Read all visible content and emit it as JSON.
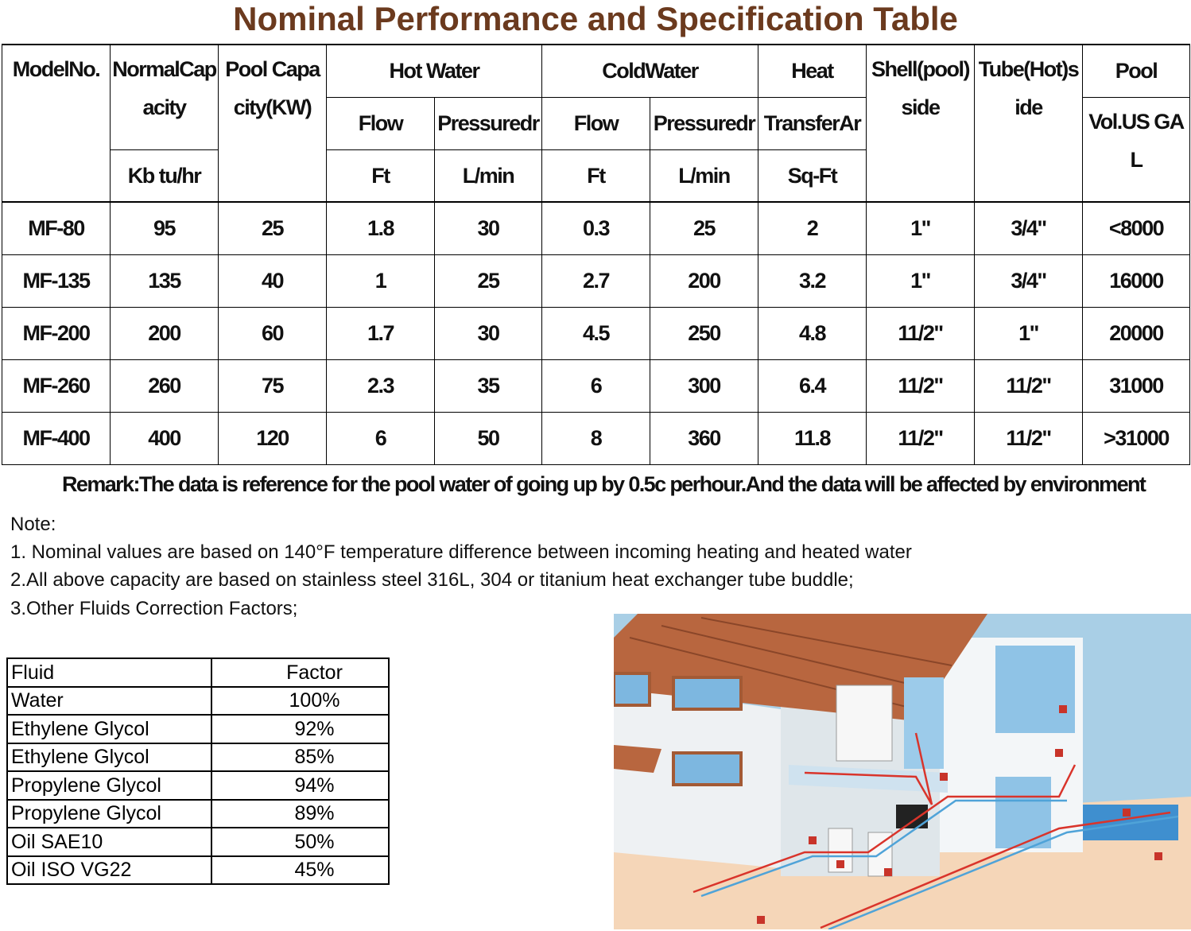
{
  "title": "Nominal Performance and Specification Table",
  "spec_table": {
    "header": {
      "model": "ModelNo.",
      "normal_capacity": "NormalCapacity",
      "normal_capacity_unit": "Kb tu/hr",
      "pool_capacity": "Pool Capacity(KW)",
      "hot_water": "Hot Water",
      "cold_water": "ColdWater",
      "heat": "Heat",
      "shell": "Shell(pool) side",
      "tube": "Tube(Hot)side",
      "pool": "Pool",
      "hot_flow": "Flow",
      "hot_pressure": "Pressuredr",
      "cold_flow": "Flow",
      "cold_pressure": "Pressuredr",
      "transfer": "TransferAr",
      "pool_vol": "Vol.US GAL",
      "hot_flow_unit": "Ft",
      "hot_pressure_unit": "L/min",
      "cold_flow_unit": "Ft",
      "cold_pressure_unit": "L/min",
      "transfer_unit": "Sq-Ft"
    },
    "rows": [
      [
        "MF-80",
        "95",
        "25",
        "1.8",
        "30",
        "0.3",
        "25",
        "2",
        "1\"",
        "3/4\"",
        "<8000"
      ],
      [
        "MF-135",
        "135",
        "40",
        "1",
        "25",
        "2.7",
        "200",
        "3.2",
        "1\"",
        "3/4\"",
        "16000"
      ],
      [
        "MF-200",
        "200",
        "60",
        "1.7",
        "30",
        "4.5",
        "250",
        "4.8",
        "11/2\"",
        "1\"",
        "20000"
      ],
      [
        "MF-260",
        "260",
        "75",
        "2.3",
        "35",
        "6",
        "300",
        "6.4",
        "11/2\"",
        "11/2\"",
        "31000"
      ],
      [
        "MF-400",
        "400",
        "120",
        "6",
        "50",
        "8",
        "360",
        "11.8",
        "11/2\"",
        "11/2\"",
        ">31000"
      ]
    ]
  },
  "remark": "Remark:The data is reference for the pool water of going up by 0.5c perhour.And the data will be affected by environment",
  "notes": {
    "heading": "Note:",
    "items": [
      "1. Nominal values are based on 140°F temperature difference between incoming heating and heated water",
      "2.All above capacity are based on stainless steel 316L, 304 or titanium heat exchanger tube buddle;",
      "3.Other Fluids Correction Factors;"
    ]
  },
  "fluid_table": {
    "headers": [
      "Fluid",
      "Factor"
    ],
    "rows": [
      [
        "Water",
        "100%"
      ],
      [
        "Ethylene Glycol",
        "92%"
      ],
      [
        "Ethylene Glycol",
        "85%"
      ],
      [
        "Propylene Glycol",
        "94%"
      ],
      [
        "Propylene Glycol",
        "89%"
      ],
      [
        "Oil SAE10",
        "50%"
      ],
      [
        "Oil ISO VG22",
        "45%"
      ]
    ]
  },
  "colors": {
    "title": "#6b3a1e",
    "roof": "#b8663f",
    "sky": "#a9cfe6",
    "ground": "#f5d6b8",
    "pipe_hot": "#d9342b",
    "pipe_cold": "#4fa3d8"
  }
}
